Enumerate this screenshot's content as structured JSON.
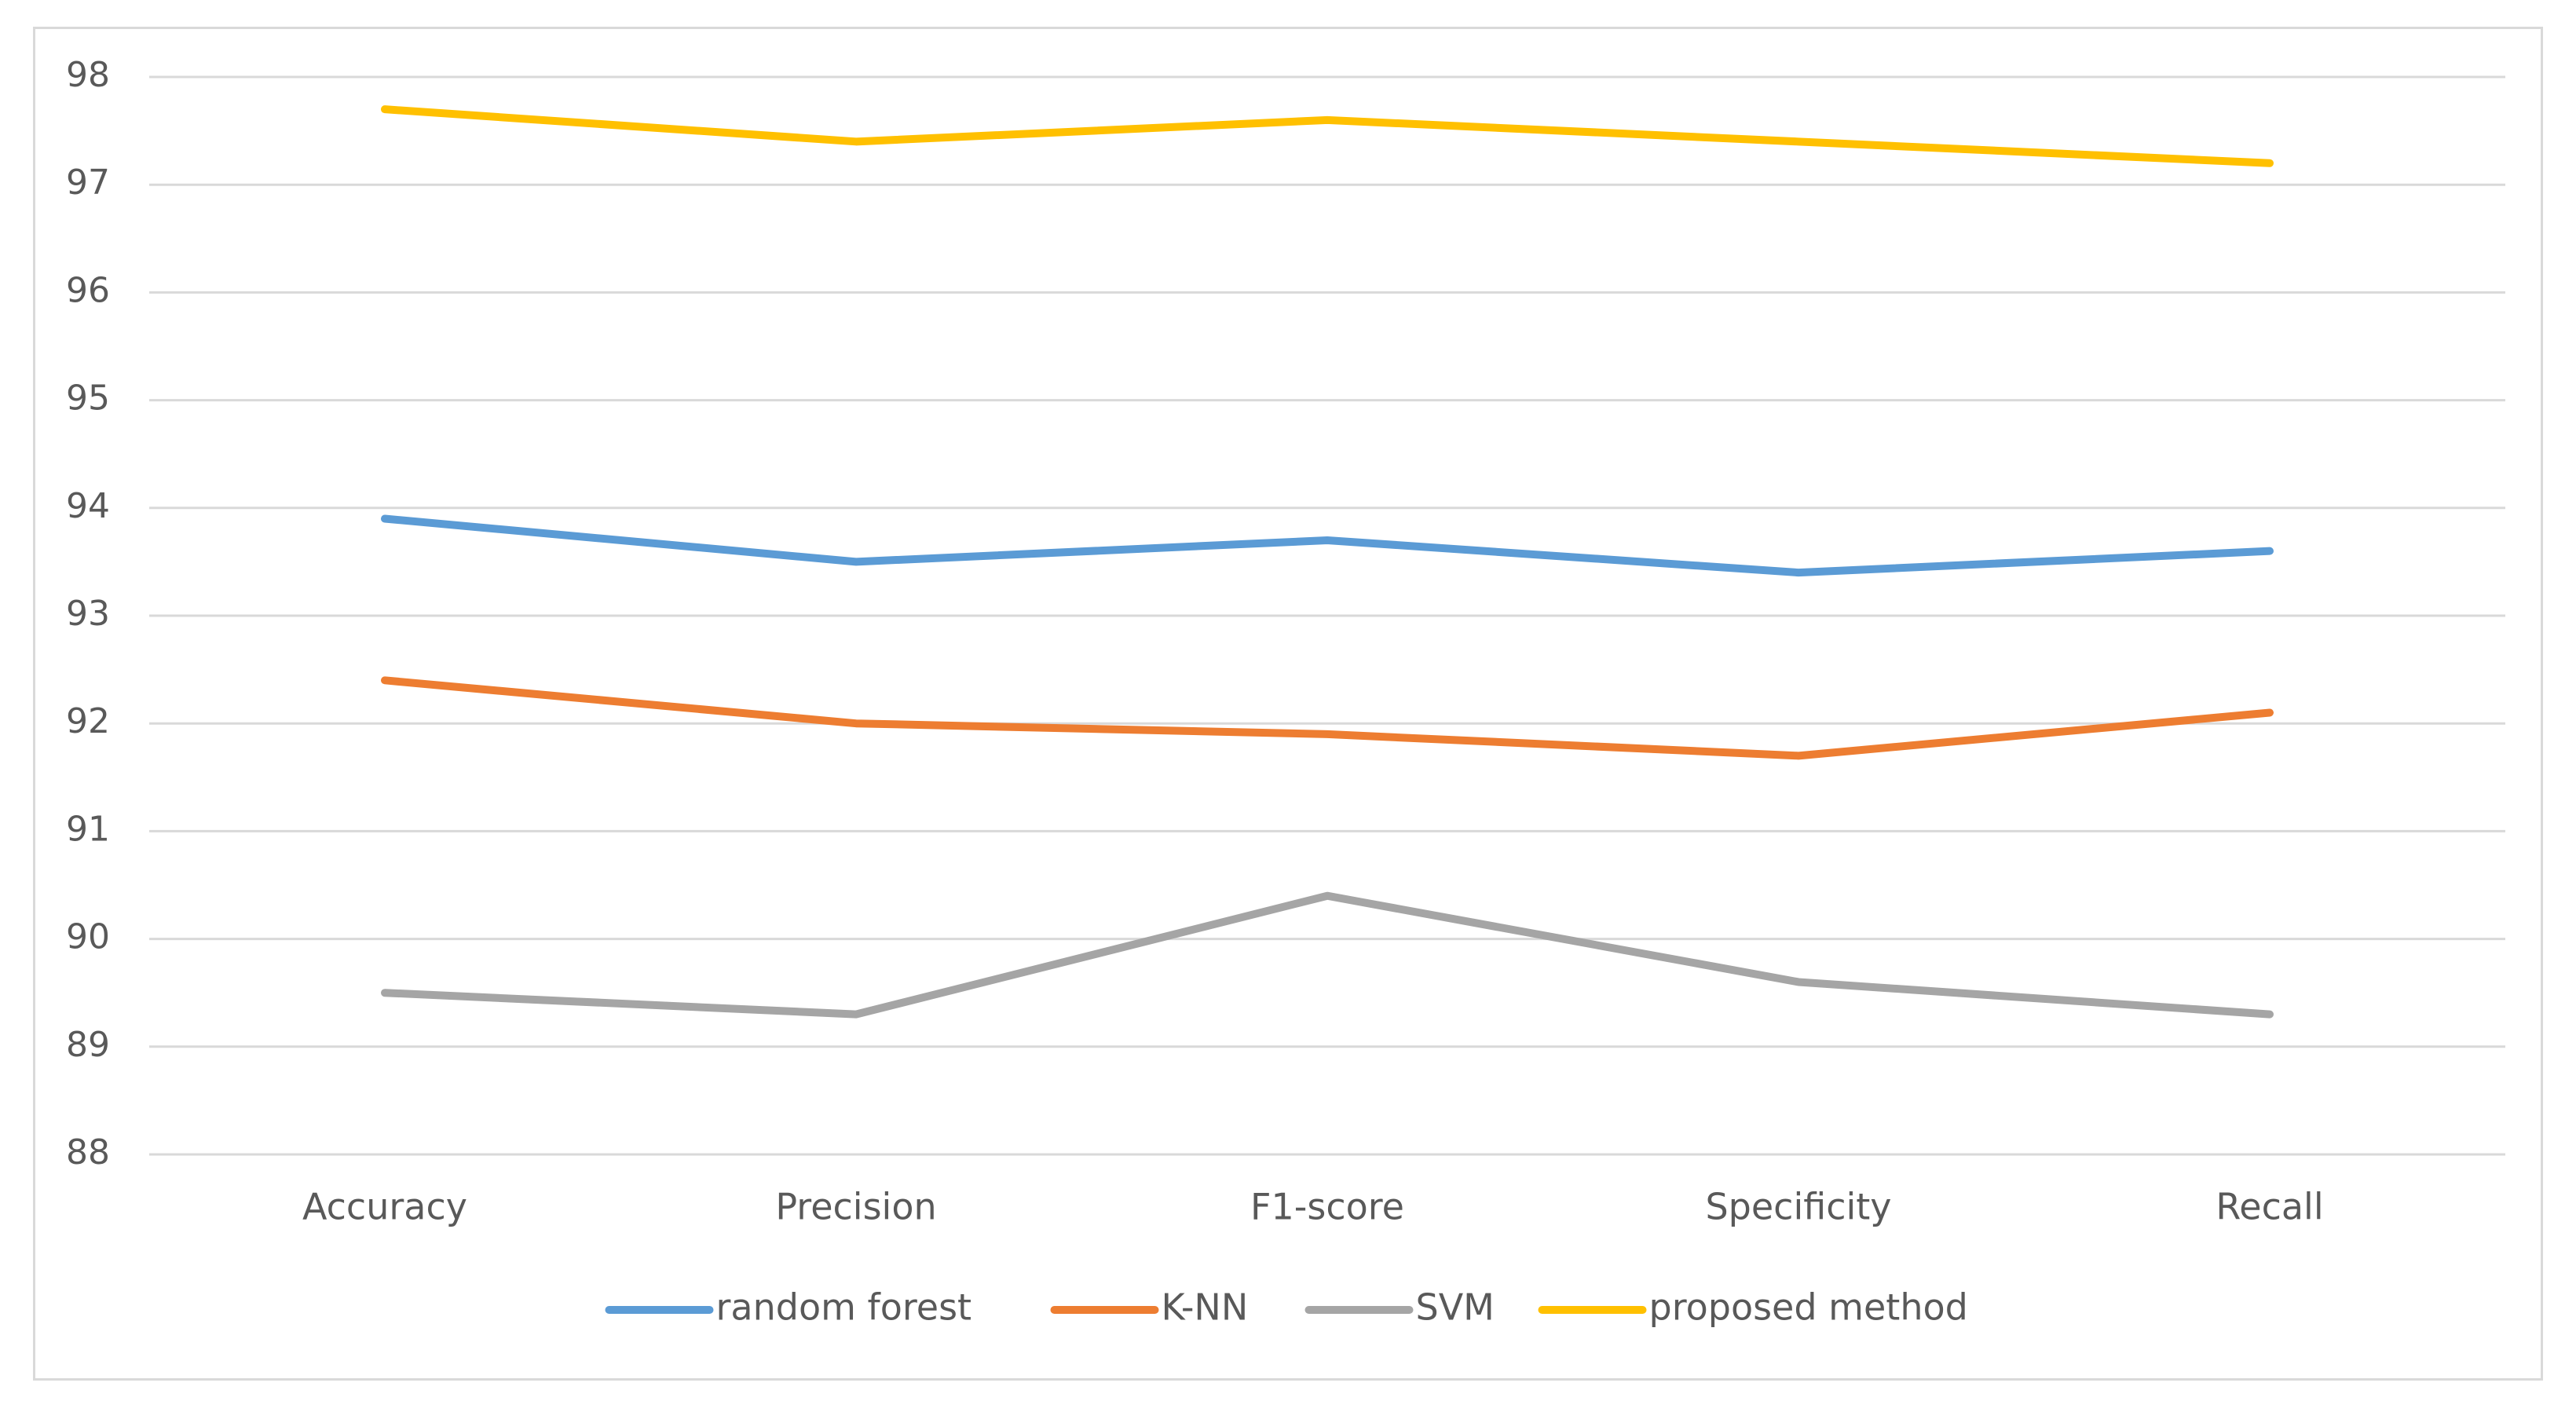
{
  "chart_data": {
    "type": "line",
    "title": "",
    "xlabel": "",
    "ylabel": "",
    "categories": [
      "Accuracy",
      "Precision",
      "F1-score",
      "Specificity",
      "Recall"
    ],
    "ylim": [
      88,
      98
    ],
    "yticks": [
      88,
      89,
      90,
      91,
      92,
      93,
      94,
      95,
      96,
      97,
      98
    ],
    "grid": true,
    "legend_position": "bottom",
    "series": [
      {
        "name": "random forest",
        "color": "#5b9bd5",
        "values": [
          93.9,
          93.5,
          93.7,
          93.4,
          93.6
        ]
      },
      {
        "name": "K-NN",
        "color": "#ed7d31",
        "values": [
          92.4,
          92.0,
          91.9,
          91.7,
          92.1
        ]
      },
      {
        "name": "SVM",
        "color": "#a5a5a5",
        "values": [
          89.5,
          89.3,
          90.4,
          89.6,
          89.3
        ]
      },
      {
        "name": "proposed method",
        "color": "#ffc000",
        "values": [
          97.7,
          97.4,
          97.6,
          97.4,
          97.2
        ]
      }
    ]
  }
}
